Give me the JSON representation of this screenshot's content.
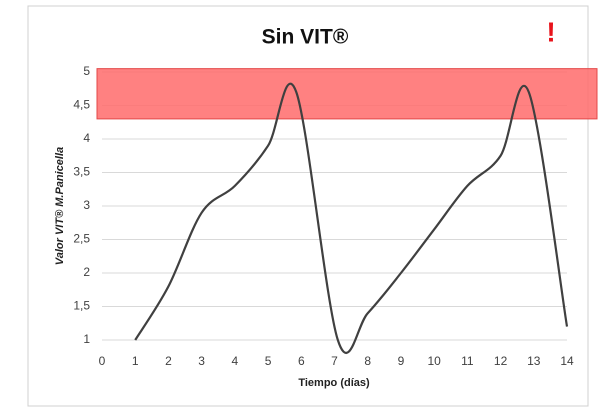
{
  "chart_data": {
    "type": "line",
    "title": "Sin VIT®",
    "alert": "!",
    "x_label": "Tiempo (días)",
    "y_label": "Valor VIT® M.Panicella",
    "series": [
      {
        "name": "Valor VIT",
        "color": "#404040",
        "x": [
          1,
          2,
          3,
          4,
          5,
          5.85,
          7.1,
          8,
          9,
          10,
          11,
          12,
          12.85,
          14
        ],
        "values": [
          1,
          1.8,
          2.9,
          3.3,
          3.9,
          4.7,
          1,
          1.4,
          2,
          2.65,
          3.3,
          3.75,
          4.7,
          1.2
        ]
      }
    ],
    "highlight_band": {
      "range": [
        4.3,
        5.05
      ],
      "color": "#ff6b6b"
    },
    "xlim": [
      0,
      14
    ],
    "xticks": [
      0,
      1,
      2,
      3,
      4,
      5,
      6,
      7,
      8,
      9,
      10,
      11,
      12,
      13,
      14
    ],
    "ylim": [
      1,
      5
    ],
    "yticks": [
      1,
      {
        "value": 1.5,
        "label": "1,5"
      },
      2,
      {
        "value": 2.5,
        "label": "2,5"
      },
      3,
      {
        "value": 3.5,
        "label": "3,5"
      },
      4,
      {
        "value": 4.5,
        "label": "4,5"
      },
      5
    ],
    "grid": true
  }
}
